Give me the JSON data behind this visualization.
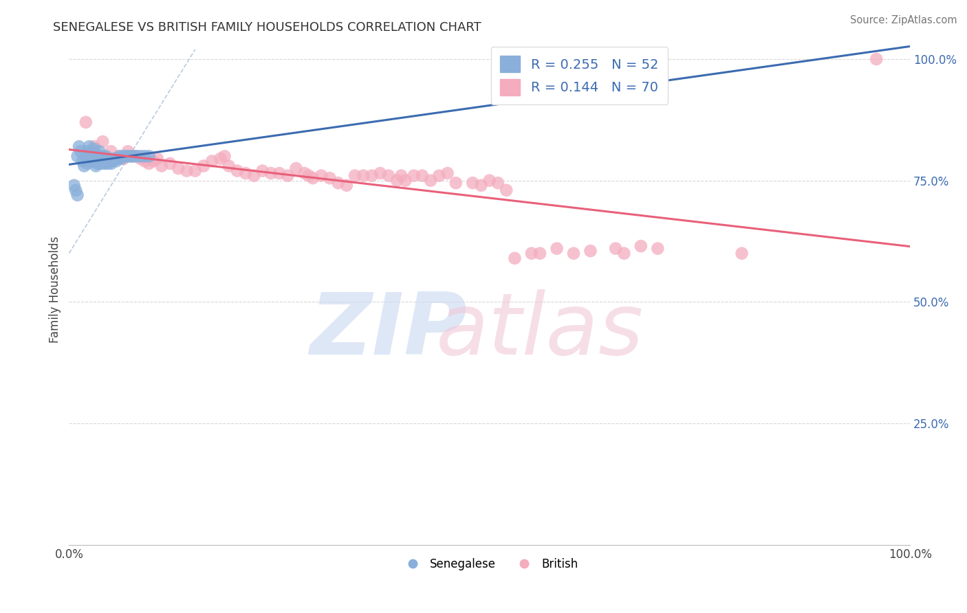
{
  "title": "SENEGALESE VS BRITISH FAMILY HOUSEHOLDS CORRELATION CHART",
  "source": "Source: ZipAtlas.com",
  "ylabel": "Family Households",
  "legend_R_blue": "0.255",
  "legend_N_blue": "52",
  "legend_R_pink": "0.144",
  "legend_N_pink": "70",
  "blue_color": "#89AFDA",
  "pink_color": "#F4ACBE",
  "blue_line_color": "#3B6BB0",
  "pink_line_color": "#E8607A",
  "dash_color": "#B8CBE0",
  "grid_color": "#D8D8D8",
  "blue_scatter_x": [
    0.01,
    0.012,
    0.014,
    0.016,
    0.018,
    0.02,
    0.022,
    0.022,
    0.024,
    0.024,
    0.026,
    0.026,
    0.028,
    0.028,
    0.03,
    0.03,
    0.032,
    0.032,
    0.034,
    0.034,
    0.036,
    0.036,
    0.038,
    0.038,
    0.04,
    0.04,
    0.042,
    0.042,
    0.044,
    0.044,
    0.046,
    0.046,
    0.048,
    0.05,
    0.052,
    0.054,
    0.056,
    0.058,
    0.06,
    0.062,
    0.065,
    0.068,
    0.07,
    0.073,
    0.076,
    0.08,
    0.085,
    0.09,
    0.095,
    0.01,
    0.008,
    0.006
  ],
  "blue_scatter_y": [
    0.8,
    0.82,
    0.81,
    0.79,
    0.78,
    0.795,
    0.785,
    0.81,
    0.805,
    0.82,
    0.79,
    0.8,
    0.81,
    0.795,
    0.815,
    0.8,
    0.78,
    0.79,
    0.795,
    0.785,
    0.8,
    0.81,
    0.785,
    0.79,
    0.795,
    0.8,
    0.785,
    0.79,
    0.795,
    0.8,
    0.785,
    0.79,
    0.795,
    0.785,
    0.79,
    0.795,
    0.79,
    0.795,
    0.8,
    0.795,
    0.8,
    0.8,
    0.8,
    0.8,
    0.8,
    0.8,
    0.8,
    0.8,
    0.8,
    0.72,
    0.73,
    0.74
  ],
  "pink_scatter_x": [
    0.02,
    0.03,
    0.04,
    0.05,
    0.06,
    0.065,
    0.07,
    0.075,
    0.08,
    0.085,
    0.09,
    0.095,
    0.1,
    0.105,
    0.11,
    0.12,
    0.13,
    0.14,
    0.15,
    0.16,
    0.17,
    0.18,
    0.185,
    0.19,
    0.2,
    0.21,
    0.22,
    0.23,
    0.24,
    0.25,
    0.26,
    0.27,
    0.28,
    0.285,
    0.29,
    0.3,
    0.31,
    0.32,
    0.33,
    0.34,
    0.35,
    0.36,
    0.37,
    0.38,
    0.39,
    0.395,
    0.4,
    0.41,
    0.42,
    0.43,
    0.44,
    0.45,
    0.46,
    0.48,
    0.49,
    0.5,
    0.51,
    0.52,
    0.53,
    0.55,
    0.56,
    0.58,
    0.6,
    0.62,
    0.65,
    0.66,
    0.68,
    0.7,
    0.8,
    0.96
  ],
  "pink_scatter_y": [
    0.87,
    0.82,
    0.83,
    0.81,
    0.8,
    0.795,
    0.81,
    0.8,
    0.8,
    0.795,
    0.79,
    0.785,
    0.79,
    0.795,
    0.78,
    0.785,
    0.775,
    0.77,
    0.77,
    0.78,
    0.79,
    0.795,
    0.8,
    0.78,
    0.77,
    0.765,
    0.76,
    0.77,
    0.765,
    0.765,
    0.76,
    0.775,
    0.765,
    0.76,
    0.755,
    0.76,
    0.755,
    0.745,
    0.74,
    0.76,
    0.76,
    0.76,
    0.765,
    0.76,
    0.75,
    0.76,
    0.75,
    0.76,
    0.76,
    0.75,
    0.76,
    0.765,
    0.745,
    0.745,
    0.74,
    0.75,
    0.745,
    0.73,
    0.59,
    0.6,
    0.6,
    0.61,
    0.6,
    0.605,
    0.61,
    0.6,
    0.615,
    0.61,
    0.6,
    1.0
  ]
}
